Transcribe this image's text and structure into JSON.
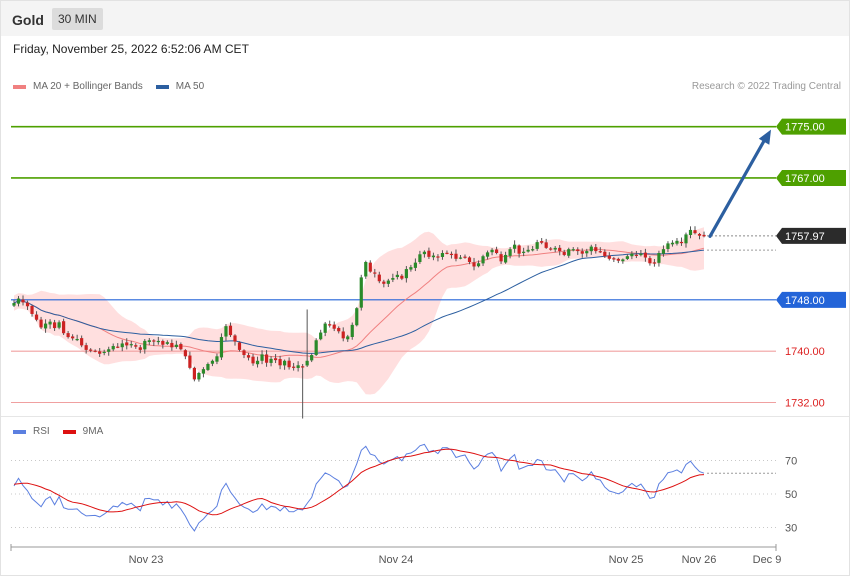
{
  "header": {
    "symbol": "Gold",
    "timeframe": "30 MIN"
  },
  "date_text": "Friday, November 25, 2022 6:52:06 AM CET",
  "credit": "Research © 2022 Trading Central",
  "legend_main": [
    {
      "label": "MA 20 + Bollinger Bands",
      "color": "#f08080"
    },
    {
      "label": "MA 50",
      "color": "#2c5fa0"
    }
  ],
  "legend_rsi": [
    {
      "label": "RSI",
      "color": "#5b7fe0"
    },
    {
      "label": "9MA",
      "color": "#dd1111"
    }
  ],
  "colors": {
    "up": "#2a8a2a",
    "down": "#cc2222",
    "wick": "#555555",
    "target": "#4ea000",
    "pivot": "#2364d8",
    "support": "#f0a0a0",
    "arrow": "#2c5fa0",
    "band": "#ffd9d9"
  },
  "chart_data": [
    {
      "type": "candlestick",
      "ylim": [
        1725,
        1778
      ],
      "levels": [
        {
          "value": 1775.0,
          "label": "1775.00",
          "kind": "target"
        },
        {
          "value": 1767.0,
          "label": "1767.00",
          "kind": "target"
        },
        {
          "value": 1757.97,
          "label": "1757.97",
          "kind": "current"
        },
        {
          "value": 1748.0,
          "label": "1748.00",
          "kind": "pivot"
        },
        {
          "value": 1740.0,
          "label": "1740.00",
          "kind": "support"
        },
        {
          "value": 1732.0,
          "label": "1732.00",
          "kind": "support"
        }
      ],
      "series": [
        {
          "name": "MA 20 + Bollinger Bands"
        },
        {
          "name": "MA 50"
        }
      ],
      "closes": [
        1747.5,
        1748.2,
        1747.6,
        1747.0,
        1745.8,
        1744.9,
        1743.7,
        1744.3,
        1744.6,
        1743.6,
        1744.5,
        1742.8,
        1742.2,
        1742.0,
        1741.9,
        1740.9,
        1740.2,
        1740.1,
        1740.0,
        1739.6,
        1739.9,
        1740.3,
        1740.8,
        1740.7,
        1741.2,
        1740.9,
        1741.1,
        1740.7,
        1740.2,
        1741.6,
        1741.7,
        1741.5,
        1741.6,
        1741.0,
        1741.4,
        1740.6,
        1741.0,
        1740.3,
        1739.2,
        1737.4,
        1735.6,
        1736.6,
        1737.2,
        1738.0,
        1738.5,
        1739.2,
        1742.2,
        1743.9,
        1742.5,
        1741.5,
        1740.2,
        1739.4,
        1739.0,
        1738.1,
        1738.5,
        1739.5,
        1738.2,
        1738.8,
        1738.6,
        1737.8,
        1738.5,
        1737.5,
        1737.4,
        1737.8,
        1737.6,
        1738.5,
        1739.4,
        1741.7,
        1742.9,
        1744.3,
        1744.0,
        1743.5,
        1743.1,
        1742.0,
        1742.3,
        1744.1,
        1746.7,
        1751.5,
        1753.9,
        1752.4,
        1752.1,
        1750.9,
        1750.5,
        1751.0,
        1751.4,
        1751.9,
        1751.3,
        1752.8,
        1753.1,
        1753.8,
        1755.1,
        1755.5,
        1754.7,
        1754.9,
        1754.6,
        1755.3,
        1755.3,
        1755.1,
        1754.4,
        1754.6,
        1754.7,
        1753.9,
        1753.2,
        1753.7,
        1754.8,
        1755.4,
        1755.8,
        1755.3,
        1754.0,
        1755.0,
        1755.9,
        1756.6,
        1755.2,
        1755.5,
        1755.8,
        1755.9,
        1757.0,
        1756.9,
        1756.1,
        1756.0,
        1756.1,
        1755.6,
        1755.0,
        1755.9,
        1755.9,
        1755.6,
        1755.2,
        1755.6,
        1756.3,
        1755.6,
        1755.5,
        1754.8,
        1754.4,
        1754.3,
        1754.1,
        1754.3,
        1754.8,
        1755.2,
        1754.9,
        1755.2,
        1754.6,
        1753.7,
        1753.8,
        1755.3,
        1755.9,
        1756.8,
        1756.9,
        1757.2,
        1756.9,
        1758.2,
        1758.9,
        1758.4,
        1758.0,
        1757.9
      ]
    },
    {
      "type": "line",
      "ylim": [
        20,
        80
      ],
      "levels": [
        70,
        50,
        30
      ],
      "series": [
        {
          "name": "RSI",
          "values": [
            54.8,
            59.4,
            55.0,
            51.9,
            47.3,
            44.9,
            42.4,
            46.7,
            48.4,
            43.6,
            48.4,
            41.8,
            40.9,
            40.9,
            41.1,
            38.6,
            36.9,
            37.1,
            37.2,
            36.3,
            38.0,
            40.1,
            42.8,
            42.3,
            45.0,
            43.5,
            44.5,
            42.3,
            40.0,
            47.2,
            47.4,
            46.5,
            46.6,
            43.4,
            45.6,
            41.5,
            44.1,
            40.9,
            36.8,
            31.6,
            28.0,
            32.8,
            35.1,
            38.2,
            40.0,
            42.7,
            52.3,
            56.4,
            51.2,
            47.7,
            44.0,
            42.1,
            41.0,
            39.0,
            40.4,
            44.1,
            40.6,
            42.7,
            42.1,
            39.9,
            42.5,
            39.5,
            39.4,
            41.0,
            40.5,
            44.3,
            48.0,
            56.0,
            59.2,
            62.6,
            61.4,
            59.5,
            57.9,
            53.8,
            54.9,
            61.5,
            68.1,
            76.1,
            78.5,
            73.8,
            73.0,
            69.2,
            67.9,
            69.6,
            70.8,
            72.3,
            69.8,
            73.9,
            74.5,
            76.1,
            78.8,
            79.6,
            75.2,
            76.0,
            74.1,
            77.6,
            77.7,
            76.2,
            71.8,
            72.7,
            73.3,
            68.6,
            64.9,
            67.0,
            71.6,
            73.8,
            74.8,
            71.6,
            63.7,
            67.8,
            71.2,
            73.5,
            64.8,
            65.9,
            67.0,
            67.0,
            70.6,
            69.8,
            64.5,
            64.2,
            64.5,
            61.1,
            57.2,
            62.1,
            62.2,
            60.1,
            57.9,
            59.8,
            63.3,
            59.1,
            58.3,
            54.1,
            51.8,
            51.0,
            50.1,
            51.4,
            54.3,
            56.3,
            54.3,
            55.9,
            52.2,
            47.4,
            48.1,
            56.1,
            58.8,
            62.7,
            63.3,
            64.4,
            62.6,
            67.6,
            69.6,
            66.2,
            63.4,
            62.4
          ]
        },
        {
          "name": "9MA",
          "values": [
            55.8,
            56.1,
            56.4,
            56.4,
            55.8,
            55.1,
            54.2,
            53.0,
            52.1,
            50.6,
            49.2,
            47.6,
            46.1,
            45.1,
            44.7,
            44.2,
            43.4,
            42.4,
            41.4,
            40.5,
            39.9,
            39.3,
            39.3,
            39.5,
            39.8,
            40.6,
            41.2,
            42.1,
            42.6,
            43.3,
            44.0,
            44.4,
            44.8,
            45.0,
            45.0,
            45.1,
            45.4,
            45.1,
            44.3,
            43.1,
            41.6,
            40.0,
            39.1,
            38.3,
            37.6,
            37.7,
            38.5,
            39.8,
            41.1,
            42.1,
            43.0,
            44.2,
            45.3,
            46.3,
            47.1,
            47.3,
            46.3,
            44.9,
            44.1,
            43.3,
            42.7,
            42.4,
            41.8,
            41.3,
            41.1,
            41.5,
            42.1,
            43.3,
            44.9,
            46.5,
            48.1,
            50.0,
            52.0,
            53.9,
            55.8,
            57.9,
            60.4,
            62.9,
            64.4,
            65.6,
            66.5,
            67.6,
            68.7,
            69.8,
            70.6,
            71.4,
            71.9,
            72.3,
            72.6,
            73.2,
            73.9,
            74.6,
            74.9,
            75.5,
            76.0,
            76.5,
            76.8,
            76.7,
            76.3,
            75.7,
            75.2,
            74.8,
            74.2,
            73.4,
            72.6,
            72.1,
            71.9,
            71.8,
            71.3,
            70.5,
            70.1,
            69.8,
            69.1,
            68.8,
            68.3,
            67.8,
            67.6,
            67.5,
            67.5,
            67.3,
            66.5,
            65.6,
            64.9,
            64.4,
            63.8,
            62.9,
            62.2,
            61.9,
            61.4,
            60.7,
            60.1,
            59.3,
            58.3,
            57.2,
            56.0,
            54.9,
            54.2,
            53.6,
            53.1,
            52.5,
            51.8,
            51.3,
            51.2,
            51.9,
            52.6,
            53.5,
            54.5,
            55.6,
            56.8,
            58.2,
            59.8,
            60.7,
            61.4,
            61.6
          ]
        }
      ]
    }
  ],
  "x_labels": [
    "Nov 23",
    "Nov 24",
    "Nov 25",
    "Nov 26",
    "Dec 9"
  ]
}
